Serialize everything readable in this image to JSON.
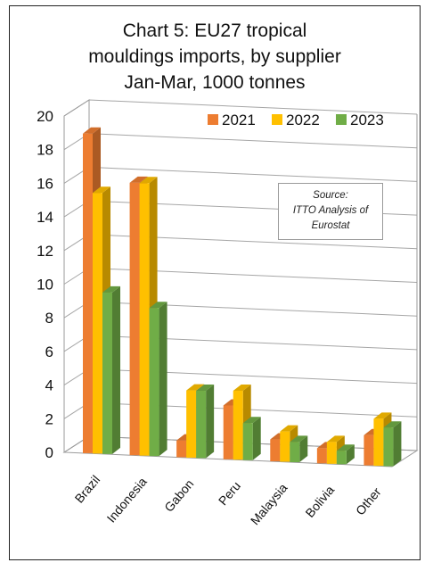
{
  "title_lines": [
    "Chart 5: EU27 tropical",
    "mouldings imports, by supplier",
    "Jan-Mar, 1000 tonnes"
  ],
  "source_lines": [
    "Source:",
    "ITTO Analysis of",
    "Eurostat"
  ],
  "chart_data": {
    "type": "bar",
    "title": "Chart 5: EU27 tropical mouldings imports, by supplier Jan-Mar, 1000 tonnes",
    "categories": [
      "Brazil",
      "Indonesia",
      "Gabon",
      "Peru",
      "Malaysia",
      "Bolivia",
      "Other"
    ],
    "series": [
      {
        "name": "2021",
        "values": [
          19.0,
          16.2,
          1.0,
          3.2,
          1.3,
          0.9,
          1.8
        ],
        "color": "#ED7D31"
      },
      {
        "name": "2022",
        "values": [
          15.5,
          16.2,
          4.0,
          4.1,
          1.8,
          1.3,
          2.8
        ],
        "color": "#FFC000"
      },
      {
        "name": "2023",
        "values": [
          9.6,
          8.8,
          4.0,
          2.2,
          1.2,
          0.8,
          2.3
        ],
        "color": "#70AD47"
      }
    ],
    "yticks": [
      0,
      2,
      4,
      6,
      8,
      10,
      12,
      14,
      16,
      18,
      20
    ],
    "ylim": [
      0,
      20
    ],
    "grid": true,
    "legend_position": "top-right",
    "style": "3d-clustered-bar"
  }
}
